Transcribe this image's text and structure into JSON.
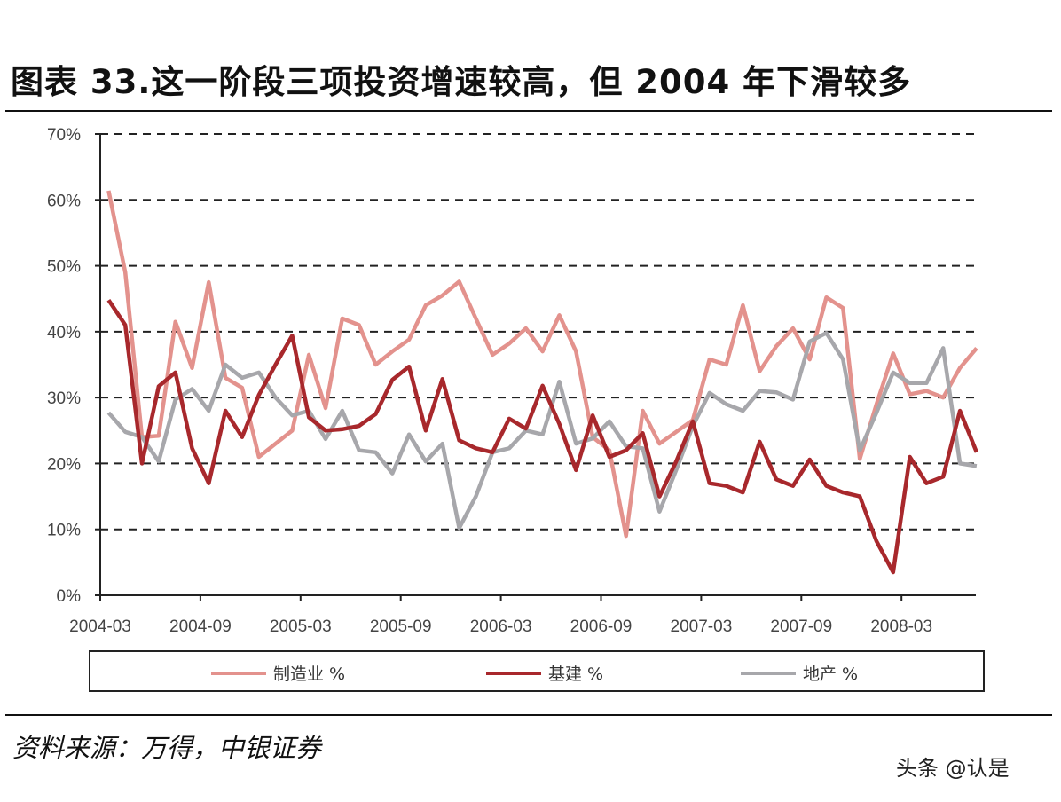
{
  "title": "图表 33.这一阶段三项投资增速较高，但 2004 年下滑较多",
  "source": "资料来源：万得，中银证券",
  "watermark": "头条 @认是",
  "chart_data": {
    "type": "line",
    "title": "",
    "xlabel": "",
    "ylabel": "",
    "ylim": [
      0,
      70
    ],
    "y_ticks": [
      "0%",
      "10%",
      "20%",
      "30%",
      "40%",
      "50%",
      "60%",
      "70%"
    ],
    "x_tick_labels": [
      "2004-03",
      "2004-09",
      "2005-03",
      "2005-09",
      "2006-03",
      "2006-09",
      "2007-03",
      "2007-09",
      "2008-03"
    ],
    "grid": "horizontal dashed",
    "legend_position": "bottom",
    "x": [
      "2004-03",
      "2004-04",
      "2004-05",
      "2004-06",
      "2004-07",
      "2004-08",
      "2004-09",
      "2004-10",
      "2004-11",
      "2004-12",
      "2005-01",
      "2005-02",
      "2005-03",
      "2005-04",
      "2005-05",
      "2005-06",
      "2005-07",
      "2005-08",
      "2005-09",
      "2005-10",
      "2005-11",
      "2005-12",
      "2006-01",
      "2006-02",
      "2006-03",
      "2006-04",
      "2006-05",
      "2006-06",
      "2006-07",
      "2006-08",
      "2006-09",
      "2006-10",
      "2006-11",
      "2006-12",
      "2007-01",
      "2007-02",
      "2007-03",
      "2007-04",
      "2007-05",
      "2007-06",
      "2007-07",
      "2007-08",
      "2007-09",
      "2007-10",
      "2007-11",
      "2007-12",
      "2008-01",
      "2008-02",
      "2008-03",
      "2008-04",
      "2008-05",
      "2008-06",
      "2008-07"
    ],
    "series": [
      {
        "name": "制造业 %",
        "color": "#E3928D",
        "values": [
          61.4,
          49,
          24,
          24.2,
          41.5,
          34.5,
          47.5,
          33,
          31.5,
          21,
          23,
          25,
          36.5,
          28.4,
          42,
          41,
          35,
          37,
          38.8,
          44,
          45.5,
          47.6,
          42,
          36.5,
          38.2,
          40.5,
          37,
          42.5,
          37,
          24,
          22,
          9,
          28,
          23,
          24.8,
          26.6,
          35.8,
          35,
          44,
          34,
          37.8,
          40.5,
          35.8,
          45.2,
          43.6,
          20.7,
          29,
          36.7,
          30.5,
          31,
          30,
          34.5,
          37.5
        ]
      },
      {
        "name": "基建 %",
        "color": "#A8282C",
        "values": [
          44.8,
          41,
          20,
          31.7,
          33.8,
          22.3,
          17,
          28,
          24,
          30.4,
          35,
          39.4,
          27,
          25,
          25.2,
          25.7,
          27.5,
          32.7,
          34.7,
          25,
          32.8,
          23.5,
          22.3,
          21.7,
          26.8,
          25.3,
          31.8,
          26,
          19,
          27.3,
          21,
          22,
          24.6,
          15,
          20.3,
          26.4,
          17,
          16.6,
          15.6,
          23.3,
          17.6,
          16.6,
          20.6,
          16.6,
          15.6,
          15,
          8.2,
          3.5,
          21,
          17,
          18,
          28,
          21.7
        ]
      },
      {
        "name": "地产 %",
        "color": "#A7A7AB",
        "values": [
          27.7,
          24.8,
          24,
          20.3,
          29.7,
          31.3,
          28,
          35,
          33,
          33.8,
          30,
          27.3,
          28,
          23.7,
          28,
          22,
          21.7,
          18.5,
          24.4,
          20.3,
          23,
          10.2,
          15,
          21.7,
          22.3,
          25,
          24.4,
          32.4,
          23,
          23.8,
          26.4,
          22.6,
          22.3,
          12.7,
          19,
          25.7,
          30.7,
          29,
          28,
          31,
          30.8,
          29.7,
          38.5,
          39.8,
          35.8,
          22,
          27.7,
          33.8,
          32.2,
          32.2,
          37.5,
          20,
          19.6
        ]
      }
    ]
  }
}
